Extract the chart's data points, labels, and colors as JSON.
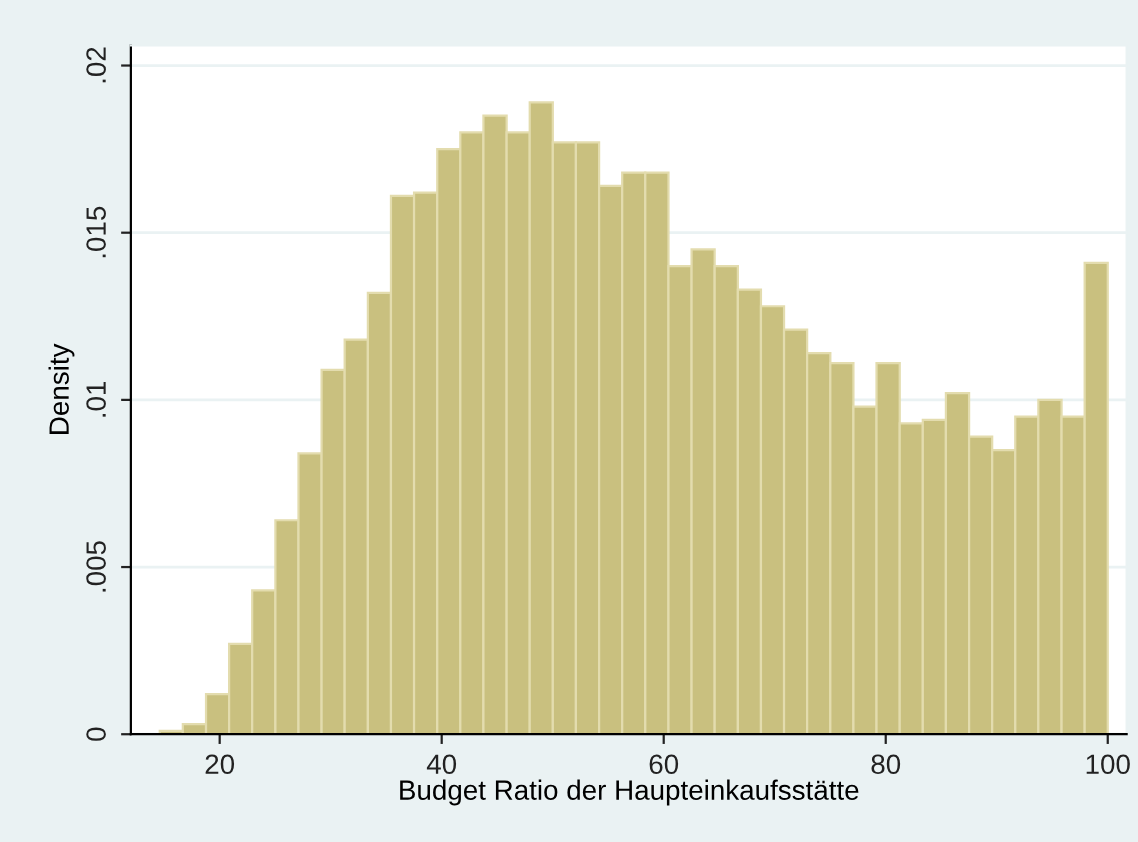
{
  "chart_data": {
    "type": "histogram",
    "xlabel": "Budget Ratio der Haupteinkaufsstätte",
    "ylabel": "Density",
    "bins": [
      14.6,
      16.68,
      18.77,
      20.85,
      22.93,
      25.02,
      27.1,
      29.18,
      31.26,
      33.35,
      35.43,
      37.51,
      39.6,
      41.68,
      43.76,
      45.85,
      47.93,
      50.01,
      52.09,
      54.18,
      56.26,
      58.34,
      60.43,
      62.51,
      64.59,
      66.68,
      68.76,
      70.84,
      72.92,
      75.01,
      77.09,
      79.17,
      81.26,
      83.34,
      85.42,
      87.51,
      89.59,
      91.67,
      93.75,
      95.84,
      97.92,
      100.0
    ],
    "values": [
      0.0001,
      0.0003,
      0.0012,
      0.0027,
      0.0043,
      0.0064,
      0.0084,
      0.0109,
      0.0118,
      0.0132,
      0.0161,
      0.0162,
      0.0175,
      0.018,
      0.0185,
      0.018,
      0.0189,
      0.0177,
      0.0177,
      0.0164,
      0.0168,
      0.0168,
      0.014,
      0.0145,
      0.014,
      0.0133,
      0.0128,
      0.0121,
      0.0114,
      0.0111,
      0.0098,
      0.0111,
      0.0093,
      0.0094,
      0.0102,
      0.0089,
      0.0085,
      0.0095,
      0.01,
      0.0095,
      0.0141
    ],
    "color": "#c9c07f",
    "xlim": [
      12,
      101.7
    ],
    "ylim": [
      0,
      0.0206
    ],
    "xticks": [
      20,
      40,
      60,
      80,
      100
    ],
    "yticks": [
      {
        "value": 0,
        "label": "0"
      },
      {
        "value": 0.005,
        "label": ".005"
      },
      {
        "value": 0.01,
        "label": ".01"
      },
      {
        "value": 0.015,
        "label": ".015"
      },
      {
        "value": 0.02,
        "label": ".02"
      }
    ],
    "grid": "y"
  }
}
